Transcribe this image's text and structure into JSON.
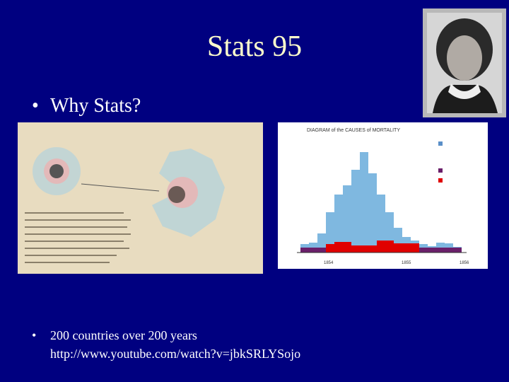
{
  "slide": {
    "title": "Stats 95",
    "bullets": [
      {
        "lines": [
          "Why Stats?"
        ]
      },
      {
        "lines": [
          "200 countries over 200 years",
          "http://www.youtube.com/watch?v=jbkSRLYSojo"
        ]
      }
    ],
    "right_image": {
      "title": "DIAGRAM of the CAUSES of MORTALITY",
      "years": [
        "1854",
        "1855",
        "1856"
      ]
    }
  }
}
